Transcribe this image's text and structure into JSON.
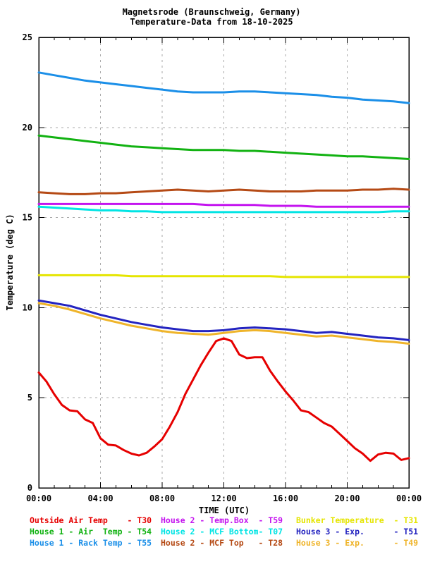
{
  "chart_data": {
    "type": "line",
    "title_lines": [
      "Magnetsrode (Braunschweig, Germany)",
      "Temperature-Data from 18-10-2025"
    ],
    "xlabel": "TIME (UTC)",
    "ylabel": "Temperature (deg C)",
    "xlim_hours": [
      0,
      24
    ],
    "ylim": [
      0,
      25
    ],
    "x_ticks": {
      "hours": [
        0,
        4,
        8,
        12,
        16,
        20,
        24
      ],
      "labels": [
        "00:00",
        "04:00",
        "08:00",
        "12:00",
        "16:00",
        "20:00",
        "00:00"
      ]
    },
    "x_minor_tick_every_hours": 1,
    "y_ticks": [
      0,
      5,
      10,
      15,
      20,
      25
    ],
    "grid": {
      "x_hours": [
        4,
        8,
        12,
        16,
        20
      ],
      "y_values": [
        5,
        10,
        15,
        20
      ],
      "style": "dashed",
      "color": "#aaaaaa"
    },
    "series": [
      {
        "id": "T55",
        "name": "House 1 - Rack Temp",
        "sensor": "T55",
        "color": "#1b8fe8",
        "x_start_hour": 0,
        "x_step_hours": 1,
        "values": [
          23.05,
          22.9,
          22.75,
          22.6,
          22.5,
          22.4,
          22.3,
          22.2,
          22.1,
          22.0,
          21.95,
          21.95,
          21.95,
          22.0,
          22.0,
          21.95,
          21.9,
          21.85,
          21.8,
          21.7,
          21.65,
          21.55,
          21.5,
          21.45,
          21.35
        ]
      },
      {
        "id": "T54",
        "name": "House 1 - Air Temp",
        "sensor": "T54",
        "color": "#12b212",
        "x_start_hour": 0,
        "x_step_hours": 1,
        "values": [
          19.55,
          19.45,
          19.35,
          19.25,
          19.15,
          19.05,
          18.95,
          18.9,
          18.85,
          18.8,
          18.75,
          18.75,
          18.75,
          18.7,
          18.7,
          18.65,
          18.6,
          18.55,
          18.5,
          18.45,
          18.4,
          18.4,
          18.35,
          18.3,
          18.25
        ]
      },
      {
        "id": "T28",
        "name": "House 2 - MCF Top",
        "sensor": "T28",
        "color": "#b54a15",
        "x_start_hour": 0,
        "x_step_hours": 1,
        "values": [
          16.4,
          16.35,
          16.3,
          16.3,
          16.35,
          16.35,
          16.4,
          16.45,
          16.5,
          16.55,
          16.5,
          16.45,
          16.5,
          16.55,
          16.5,
          16.45,
          16.45,
          16.45,
          16.5,
          16.5,
          16.5,
          16.55,
          16.55,
          16.6,
          16.55
        ]
      },
      {
        "id": "T07",
        "name": "House 2 - MCF Bottom",
        "sensor": "T07",
        "color": "#00e4e4",
        "x_start_hour": 0,
        "x_step_hours": 1,
        "values": [
          15.6,
          15.55,
          15.5,
          15.45,
          15.4,
          15.4,
          15.35,
          15.35,
          15.3,
          15.3,
          15.3,
          15.3,
          15.3,
          15.3,
          15.3,
          15.3,
          15.3,
          15.3,
          15.3,
          15.3,
          15.3,
          15.3,
          15.3,
          15.35,
          15.35
        ]
      },
      {
        "id": "T59",
        "name": "House 2 - Temp.Box",
        "sensor": "T59",
        "color": "#c414ef",
        "x_start_hour": 0,
        "x_step_hours": 1,
        "values": [
          15.75,
          15.75,
          15.75,
          15.75,
          15.75,
          15.75,
          15.75,
          15.75,
          15.75,
          15.75,
          15.75,
          15.7,
          15.7,
          15.7,
          15.7,
          15.65,
          15.65,
          15.65,
          15.6,
          15.6,
          15.6,
          15.6,
          15.6,
          15.6,
          15.6
        ]
      },
      {
        "id": "T31",
        "name": "Bunker Temperature",
        "sensor": "T31",
        "color": "#e5e500",
        "x_start_hour": 0,
        "x_step_hours": 1,
        "values": [
          11.8,
          11.8,
          11.8,
          11.8,
          11.8,
          11.8,
          11.75,
          11.75,
          11.75,
          11.75,
          11.75,
          11.75,
          11.75,
          11.75,
          11.75,
          11.75,
          11.7,
          11.7,
          11.7,
          11.7,
          11.7,
          11.7,
          11.7,
          11.7,
          11.7
        ]
      },
      {
        "id": "T51",
        "name": "House 3 - Exp.",
        "sensor": "T51",
        "color": "#2424c0",
        "x_start_hour": 0,
        "x_step_hours": 1,
        "values": [
          10.4,
          10.25,
          10.1,
          9.85,
          9.6,
          9.4,
          9.2,
          9.05,
          8.9,
          8.8,
          8.7,
          8.7,
          8.75,
          8.85,
          8.9,
          8.85,
          8.8,
          8.7,
          8.6,
          8.65,
          8.55,
          8.45,
          8.35,
          8.3,
          8.2
        ]
      },
      {
        "id": "T49",
        "name": "House 3 - Exp.",
        "sensor": "T49",
        "color": "#efb42a",
        "x_start_hour": 0,
        "x_step_hours": 1,
        "values": [
          10.25,
          10.1,
          9.9,
          9.65,
          9.4,
          9.2,
          9.0,
          8.85,
          8.7,
          8.6,
          8.55,
          8.5,
          8.6,
          8.7,
          8.75,
          8.7,
          8.6,
          8.5,
          8.4,
          8.45,
          8.35,
          8.25,
          8.15,
          8.1,
          8.0
        ]
      },
      {
        "id": "T30",
        "name": "Outside Air Temp",
        "sensor": "T30",
        "color": "#e60000",
        "x_start_hour": 0,
        "x_step_hours": 0.5,
        "values": [
          6.4,
          5.9,
          5.2,
          4.6,
          4.3,
          4.25,
          3.8,
          3.6,
          2.75,
          2.4,
          2.35,
          2.1,
          1.9,
          1.8,
          1.95,
          2.3,
          2.7,
          3.4,
          4.2,
          5.2,
          6.0,
          6.8,
          7.5,
          8.15,
          8.3,
          8.15,
          7.4,
          7.2,
          7.25,
          7.25,
          6.5,
          5.9,
          5.35,
          4.85,
          4.3,
          4.2,
          3.9,
          3.6,
          3.4,
          3.0,
          2.6,
          2.2,
          1.9,
          1.5,
          1.85,
          1.95,
          1.9,
          1.55,
          1.65
        ]
      }
    ]
  },
  "legend": {
    "rows": [
      [
        {
          "id": "T30",
          "text": "Outside Air Temp    - T30",
          "color": "#e60000"
        },
        {
          "id": "T59",
          "text": "House 2 - Temp.Box  - T59",
          "color": "#c414ef"
        },
        {
          "id": "T31",
          "text": "Bunker Temperature  - T31",
          "color": "#e5e500"
        }
      ],
      [
        {
          "id": "T54",
          "text": "House 1 - Air  Temp - T54",
          "color": "#12b212"
        },
        {
          "id": "T07",
          "text": "House 2 - MCF Bottom- T07",
          "color": "#00e4e4"
        },
        {
          "id": "T51",
          "text": "House 3 - Exp.      - T51",
          "color": "#2424c0"
        }
      ],
      [
        {
          "id": "T55",
          "text": "House 1 - Rack Temp - T55",
          "color": "#1b8fe8"
        },
        {
          "id": "T28",
          "text": "House 2 - MCF Top   - T28",
          "color": "#b54a15"
        },
        {
          "id": "T49",
          "text": "House 3 - Exp.      - T49",
          "color": "#efb42a"
        }
      ]
    ]
  },
  "colors": {
    "background": "#ffffff",
    "axis": "#000000",
    "grid": "#aaaaaa"
  }
}
